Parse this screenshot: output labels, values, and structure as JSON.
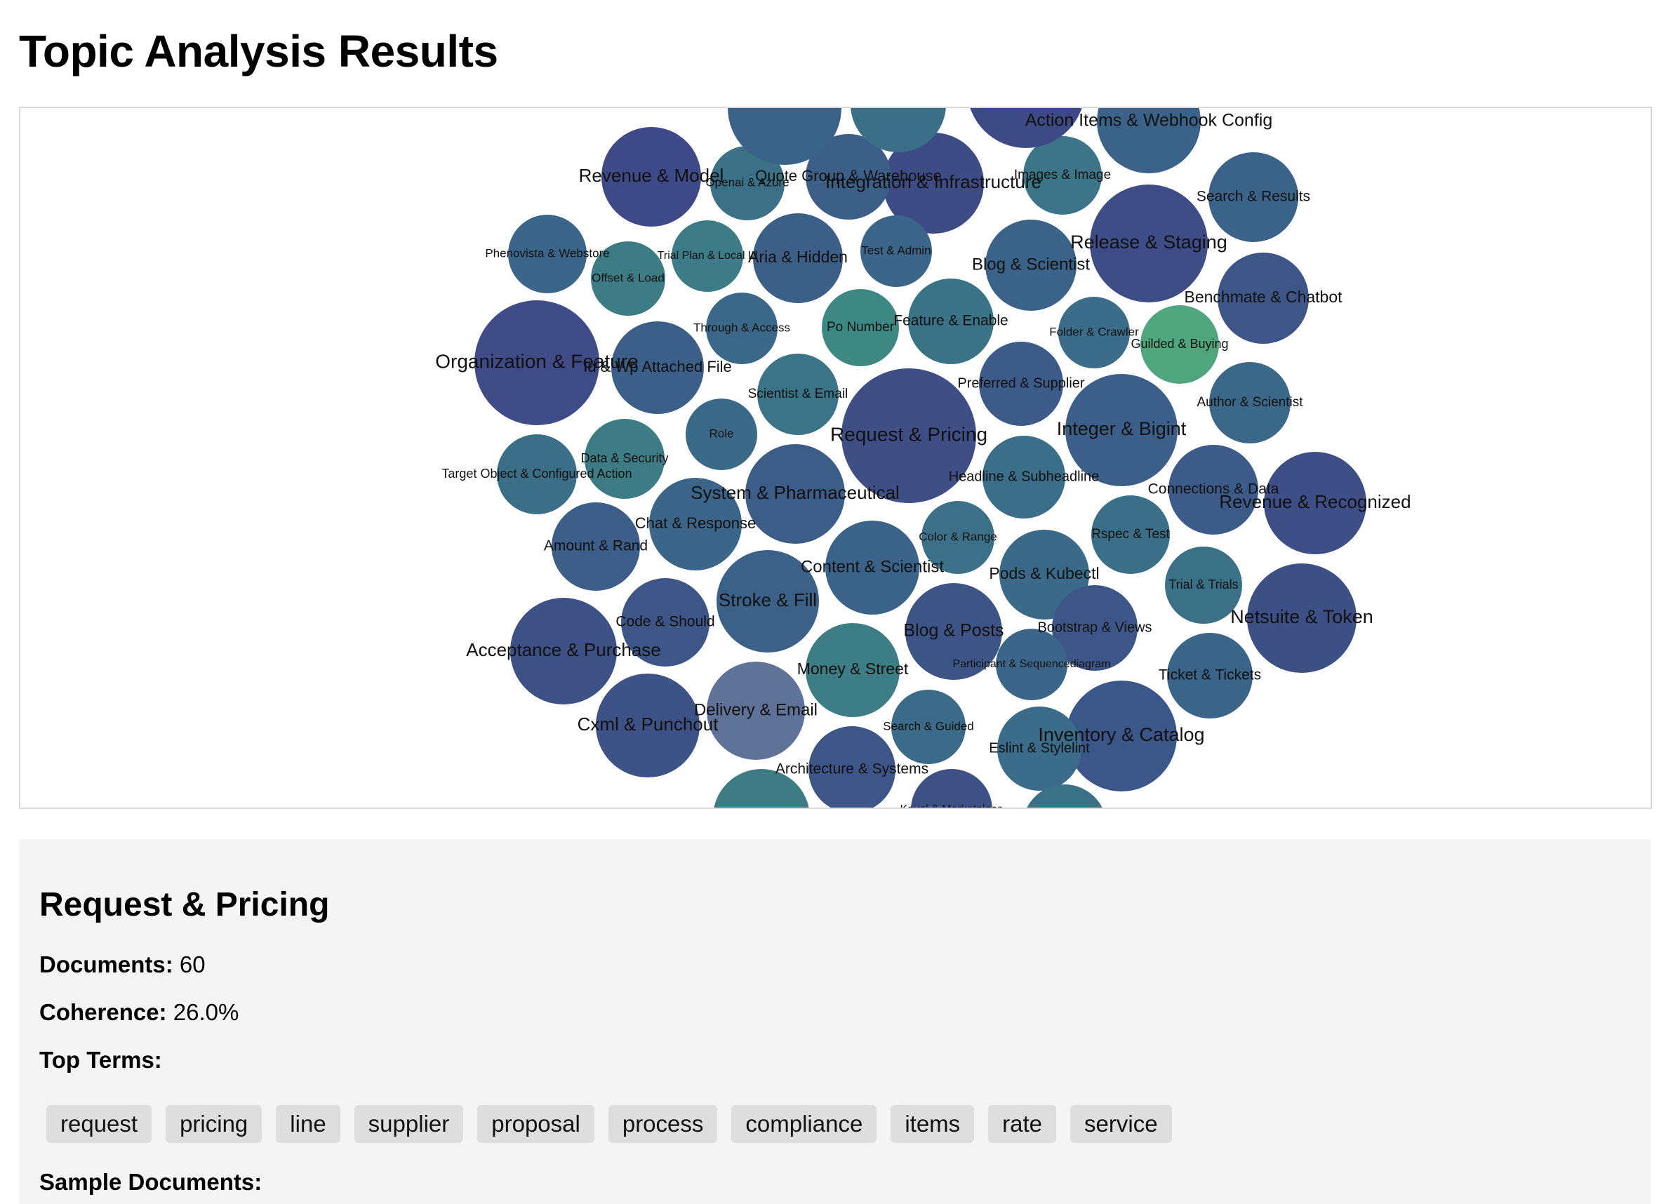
{
  "page": {
    "title": "Topic Analysis Results"
  },
  "bubbles": [
    {
      "label": "Request & Pricing",
      "color": "#3f4f86",
      "selected": true
    },
    {
      "label": "Organization & Feature",
      "color": "#404c87"
    },
    {
      "label": "Release & Staging",
      "color": "#3f4d86"
    },
    {
      "label": "Revenue & Model",
      "color": "#3e4a87"
    },
    {
      "label": "Integration & Infrastructure",
      "color": "#3e4c86"
    },
    {
      "label": "Integer & Bigint",
      "color": "#3b5f88"
    },
    {
      "label": "Inventory & Catalog",
      "color": "#3b5688"
    },
    {
      "label": "Netsuite & Token",
      "color": "#3d5086"
    },
    {
      "label": "Revenue & Recognized",
      "color": "#3d4f86"
    },
    {
      "label": "Acceptance & Purchase",
      "color": "#3e5186"
    },
    {
      "label": "Cxml & Punchout",
      "color": "#3d5287"
    },
    {
      "label": "Delivery & Email",
      "color": "#5f7399"
    },
    {
      "label": "Money & Street",
      "color": "#3d7d85"
    },
    {
      "label": "Stroke & Fill",
      "color": "#3c6189"
    },
    {
      "label": "System & Pharmaceutical",
      "color": "#3c5d88"
    },
    {
      "label": "Content & Scientist",
      "color": "#3b6389"
    },
    {
      "label": "Blog & Posts",
      "color": "#3d5487"
    },
    {
      "label": "Pods & Kubectl",
      "color": "#3b6a89"
    },
    {
      "label": "Blog & Scientist",
      "color": "#3b6389"
    },
    {
      "label": "Aria & Hidden",
      "color": "#3c5f88"
    },
    {
      "label": "Quote Group & Warehouse",
      "color": "#3c5f88"
    },
    {
      "label": "Action Items & Webhook Config",
      "color": "#3b6389"
    },
    {
      "label": "Search & Results",
      "color": "#3b6389"
    },
    {
      "label": "Benchmate & Chatbot",
      "color": "#3e5587"
    },
    {
      "label": "Guilded & Buying",
      "color": "#4fa57d"
    },
    {
      "label": "Folder & Crawler",
      "color": "#3b6c89"
    },
    {
      "label": "Preferred & Supplier",
      "color": "#3c5b88"
    },
    {
      "label": "Author & Scientist",
      "color": "#3b6889"
    },
    {
      "label": "Headline & Subheadline",
      "color": "#3b6e89"
    },
    {
      "label": "Connections & Data",
      "color": "#3c5b88"
    },
    {
      "label": "Rspec & Test",
      "color": "#3b6f88"
    },
    {
      "label": "Trial & Trials",
      "color": "#3b7187"
    },
    {
      "label": "Bootstrap & Views",
      "color": "#3d5687"
    },
    {
      "label": "Ticket & Tickets",
      "color": "#3b6489"
    },
    {
      "label": "Participant & Sequencediagram",
      "color": "#3b6689"
    },
    {
      "label": "Eslint & Stylelint",
      "color": "#3b6c89"
    },
    {
      "label": "Search & Guided",
      "color": "#3b6b88"
    },
    {
      "label": "Architecture & Systems",
      "color": "#3e5587"
    },
    {
      "label": "Color & Range",
      "color": "#3b7088"
    },
    {
      "label": "Feature & Enable",
      "color": "#3b7386"
    },
    {
      "label": "Po Number",
      "color": "#3e8884"
    },
    {
      "label": "Test & Admin",
      "color": "#3b6689"
    },
    {
      "label": "Images & Image",
      "color": "#3c7587"
    },
    {
      "label": "Openai & Azure",
      "color": "#3b7086"
    },
    {
      "label": "Trial Plan & Local Id",
      "color": "#3d7b86"
    },
    {
      "label": "Phenovista & Webstore",
      "color": "#3b6689"
    },
    {
      "label": "Offset & Load",
      "color": "#3d7b85"
    },
    {
      "label": "Through & Access",
      "color": "#3b6889"
    },
    {
      "label": "Scientist & Email",
      "color": "#3b7487"
    },
    {
      "label": "Role",
      "color": "#3b6a89"
    },
    {
      "label": "Data & Security",
      "color": "#3d7b85"
    },
    {
      "label": "Target Object & Configured Action",
      "color": "#3b6f88"
    },
    {
      "label": "Amount & Rand",
      "color": "#3c5e88"
    },
    {
      "label": "Chat & Response",
      "color": "#3b6589"
    },
    {
      "label": "Code & Should",
      "color": "#3d5687"
    },
    {
      "label": "Id & Wp Attached File",
      "color": "#3b5f88"
    },
    {
      "label": "",
      "color": "#3b6389"
    },
    {
      "label": "",
      "color": "#3b6f88"
    },
    {
      "label": "",
      "color": "#3e4a86"
    },
    {
      "label": "",
      "color": "#3d7b85"
    },
    {
      "label": "Kayal & Marketplace",
      "color": "#3e5186"
    },
    {
      "label": "",
      "color": "#3b7187"
    }
  ],
  "details": {
    "title": "Request & Pricing",
    "documents_label": "Documents:",
    "documents_value": "60",
    "coherence_label": "Coherence:",
    "coherence_value": "26.0%",
    "top_terms_label": "Top Terms:",
    "top_terms": [
      "request",
      "pricing",
      "line",
      "supplier",
      "proposal",
      "process",
      "compliance",
      "items",
      "rate",
      "service"
    ],
    "sample_documents_label": "Sample Documents:"
  }
}
